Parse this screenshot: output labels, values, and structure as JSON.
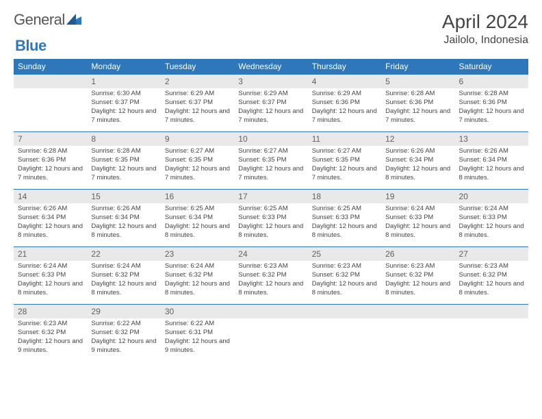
{
  "brand": {
    "word1": "General",
    "word2": "Blue",
    "mark_color": "#2f77bb",
    "text_color": "#555555"
  },
  "title": {
    "month": "April 2024",
    "location": "Jailolo, Indonesia"
  },
  "colors": {
    "header_bg": "#2f77bb",
    "header_fg": "#ffffff",
    "daynum_bg": "#e9e9e9",
    "daynum_fg": "#606060",
    "border": "#2f77bb",
    "body_text": "#444444"
  },
  "dayNames": [
    "Sunday",
    "Monday",
    "Tuesday",
    "Wednesday",
    "Thursday",
    "Friday",
    "Saturday"
  ],
  "weeks": [
    [
      {
        "n": ""
      },
      {
        "n": "1",
        "sunrise": "6:30 AM",
        "sunset": "6:37 PM",
        "dl": "12 hours and 7 minutes."
      },
      {
        "n": "2",
        "sunrise": "6:29 AM",
        "sunset": "6:37 PM",
        "dl": "12 hours and 7 minutes."
      },
      {
        "n": "3",
        "sunrise": "6:29 AM",
        "sunset": "6:37 PM",
        "dl": "12 hours and 7 minutes."
      },
      {
        "n": "4",
        "sunrise": "6:29 AM",
        "sunset": "6:36 PM",
        "dl": "12 hours and 7 minutes."
      },
      {
        "n": "5",
        "sunrise": "6:28 AM",
        "sunset": "6:36 PM",
        "dl": "12 hours and 7 minutes."
      },
      {
        "n": "6",
        "sunrise": "6:28 AM",
        "sunset": "6:36 PM",
        "dl": "12 hours and 7 minutes."
      }
    ],
    [
      {
        "n": "7",
        "sunrise": "6:28 AM",
        "sunset": "6:36 PM",
        "dl": "12 hours and 7 minutes."
      },
      {
        "n": "8",
        "sunrise": "6:28 AM",
        "sunset": "6:35 PM",
        "dl": "12 hours and 7 minutes."
      },
      {
        "n": "9",
        "sunrise": "6:27 AM",
        "sunset": "6:35 PM",
        "dl": "12 hours and 7 minutes."
      },
      {
        "n": "10",
        "sunrise": "6:27 AM",
        "sunset": "6:35 PM",
        "dl": "12 hours and 7 minutes."
      },
      {
        "n": "11",
        "sunrise": "6:27 AM",
        "sunset": "6:35 PM",
        "dl": "12 hours and 7 minutes."
      },
      {
        "n": "12",
        "sunrise": "6:26 AM",
        "sunset": "6:34 PM",
        "dl": "12 hours and 8 minutes."
      },
      {
        "n": "13",
        "sunrise": "6:26 AM",
        "sunset": "6:34 PM",
        "dl": "12 hours and 8 minutes."
      }
    ],
    [
      {
        "n": "14",
        "sunrise": "6:26 AM",
        "sunset": "6:34 PM",
        "dl": "12 hours and 8 minutes."
      },
      {
        "n": "15",
        "sunrise": "6:26 AM",
        "sunset": "6:34 PM",
        "dl": "12 hours and 8 minutes."
      },
      {
        "n": "16",
        "sunrise": "6:25 AM",
        "sunset": "6:34 PM",
        "dl": "12 hours and 8 minutes."
      },
      {
        "n": "17",
        "sunrise": "6:25 AM",
        "sunset": "6:33 PM",
        "dl": "12 hours and 8 minutes."
      },
      {
        "n": "18",
        "sunrise": "6:25 AM",
        "sunset": "6:33 PM",
        "dl": "12 hours and 8 minutes."
      },
      {
        "n": "19",
        "sunrise": "6:24 AM",
        "sunset": "6:33 PM",
        "dl": "12 hours and 8 minutes."
      },
      {
        "n": "20",
        "sunrise": "6:24 AM",
        "sunset": "6:33 PM",
        "dl": "12 hours and 8 minutes."
      }
    ],
    [
      {
        "n": "21",
        "sunrise": "6:24 AM",
        "sunset": "6:33 PM",
        "dl": "12 hours and 8 minutes."
      },
      {
        "n": "22",
        "sunrise": "6:24 AM",
        "sunset": "6:32 PM",
        "dl": "12 hours and 8 minutes."
      },
      {
        "n": "23",
        "sunrise": "6:24 AM",
        "sunset": "6:32 PM",
        "dl": "12 hours and 8 minutes."
      },
      {
        "n": "24",
        "sunrise": "6:23 AM",
        "sunset": "6:32 PM",
        "dl": "12 hours and 8 minutes."
      },
      {
        "n": "25",
        "sunrise": "6:23 AM",
        "sunset": "6:32 PM",
        "dl": "12 hours and 8 minutes."
      },
      {
        "n": "26",
        "sunrise": "6:23 AM",
        "sunset": "6:32 PM",
        "dl": "12 hours and 8 minutes."
      },
      {
        "n": "27",
        "sunrise": "6:23 AM",
        "sunset": "6:32 PM",
        "dl": "12 hours and 8 minutes."
      }
    ],
    [
      {
        "n": "28",
        "sunrise": "6:23 AM",
        "sunset": "6:32 PM",
        "dl": "12 hours and 9 minutes."
      },
      {
        "n": "29",
        "sunrise": "6:22 AM",
        "sunset": "6:32 PM",
        "dl": "12 hours and 9 minutes."
      },
      {
        "n": "30",
        "sunrise": "6:22 AM",
        "sunset": "6:31 PM",
        "dl": "12 hours and 9 minutes."
      },
      {
        "n": ""
      },
      {
        "n": ""
      },
      {
        "n": ""
      },
      {
        "n": ""
      }
    ]
  ],
  "labels": {
    "sunrise": "Sunrise:",
    "sunset": "Sunset:",
    "daylight": "Daylight:"
  }
}
